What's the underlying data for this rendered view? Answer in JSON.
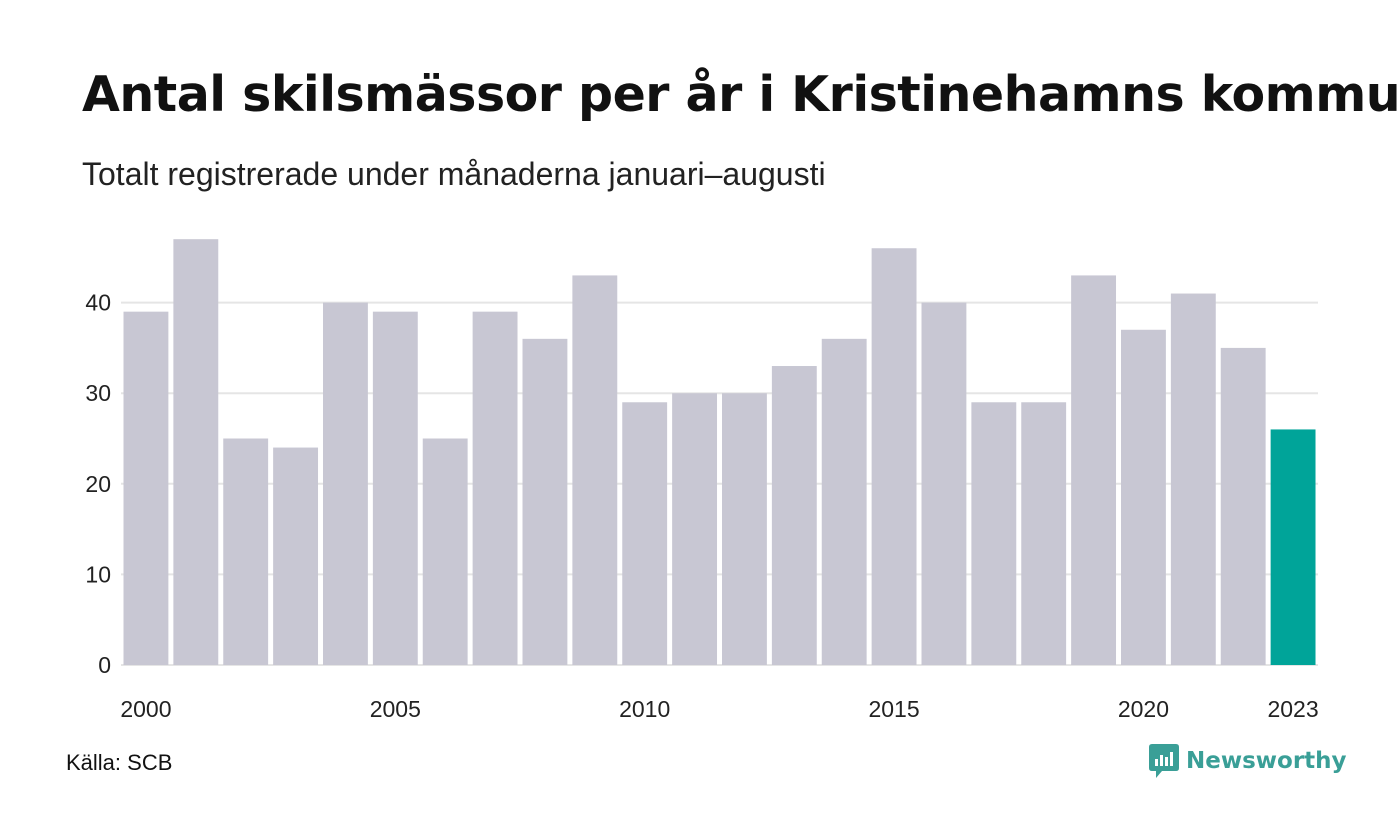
{
  "title": "Antal skilsmässor per år i Kristinehamns kommun",
  "subtitle": "Totalt registrerade under månaderna januari–augusti",
  "source": "Källa: SCB",
  "brand": {
    "name": "Newsworthy",
    "icon": "newsworthy-logo-icon",
    "color": "#3a9f97"
  },
  "colors": {
    "bar": "#c8c7d3",
    "highlight": "#00a499",
    "grid": "#e5e5e5",
    "axis_text": "#222222"
  },
  "chart_data": {
    "type": "bar",
    "categories": [
      "2000",
      "2001",
      "2002",
      "2003",
      "2004",
      "2005",
      "2006",
      "2007",
      "2008",
      "2009",
      "2010",
      "2011",
      "2012",
      "2013",
      "2014",
      "2015",
      "2016",
      "2017",
      "2018",
      "2019",
      "2020",
      "2021",
      "2022",
      "2023"
    ],
    "values": [
      39,
      47,
      25,
      24,
      40,
      39,
      25,
      39,
      36,
      43,
      29,
      30,
      30,
      33,
      36,
      46,
      40,
      29,
      29,
      43,
      37,
      41,
      35,
      26
    ],
    "highlight_index": 23,
    "x_tick_labels": [
      "2000",
      "2005",
      "2010",
      "2015",
      "2020",
      "2023"
    ],
    "y_ticks": [
      0,
      10,
      20,
      30,
      40
    ],
    "ylim": [
      0,
      47
    ],
    "grid": true,
    "xlabel": "",
    "ylabel": ""
  }
}
